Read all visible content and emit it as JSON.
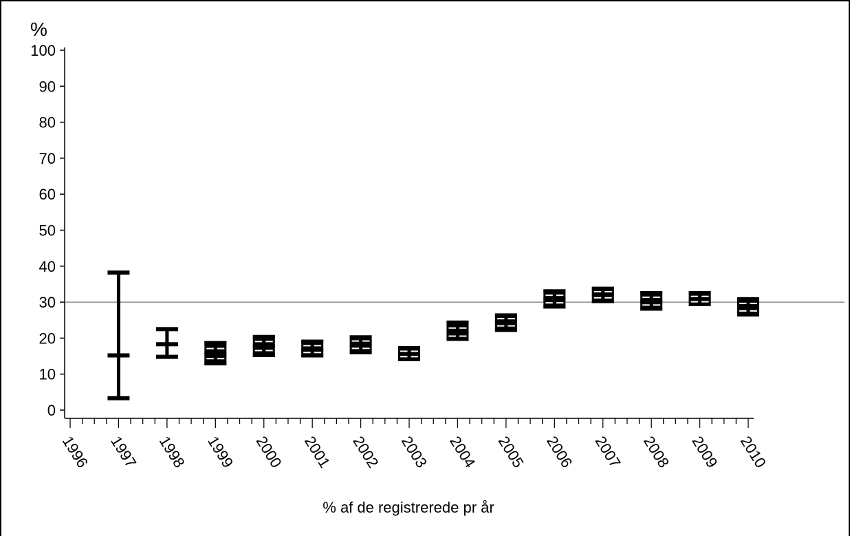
{
  "chart_data": {
    "type": "errorbar",
    "title": "",
    "ylabel": "%",
    "xlabel": "% af de registrerede pr år",
    "ylim": [
      0,
      100
    ],
    "yticks": [
      0,
      10,
      20,
      30,
      40,
      50,
      60,
      70,
      80,
      90,
      100
    ],
    "xlim": [
      1996,
      2010
    ],
    "xticks": [
      "1996",
      "1997",
      "1998",
      "1999",
      "2000",
      "2001",
      "2002",
      "2003",
      "2004",
      "2005",
      "2006",
      "2007",
      "2008",
      "2009",
      "2010"
    ],
    "reference_line": 30,
    "grid": false,
    "series": [
      {
        "points": [
          {
            "x": 1997,
            "y": 15.2,
            "low": 3.3,
            "high": 38.2
          },
          {
            "x": 1998,
            "y": 18.3,
            "low": 14.8,
            "high": 22.5
          },
          {
            "x": 1999,
            "y": 15.6,
            "low": 13.0,
            "high": 18.6
          },
          {
            "x": 2000,
            "y": 17.8,
            "low": 15.3,
            "high": 20.3
          },
          {
            "x": 2001,
            "y": 16.8,
            "low": 15.2,
            "high": 19.0
          },
          {
            "x": 2002,
            "y": 18.2,
            "low": 16.1,
            "high": 20.2
          },
          {
            "x": 2003,
            "y": 15.5,
            "low": 14.2,
            "high": 17.2
          },
          {
            "x": 2004,
            "y": 21.3,
            "low": 19.8,
            "high": 24.3
          },
          {
            "x": 2005,
            "y": 24.5,
            "low": 22.3,
            "high": 26.3
          },
          {
            "x": 2006,
            "y": 30.8,
            "low": 28.8,
            "high": 33.0
          },
          {
            "x": 2007,
            "y": 32.1,
            "low": 30.3,
            "high": 33.7
          },
          {
            "x": 2008,
            "y": 30.2,
            "low": 28.2,
            "high": 32.5
          },
          {
            "x": 2009,
            "y": 30.7,
            "low": 29.5,
            "high": 32.5
          },
          {
            "x": 2010,
            "y": 28.5,
            "low": 26.6,
            "high": 30.8
          }
        ]
      }
    ]
  }
}
